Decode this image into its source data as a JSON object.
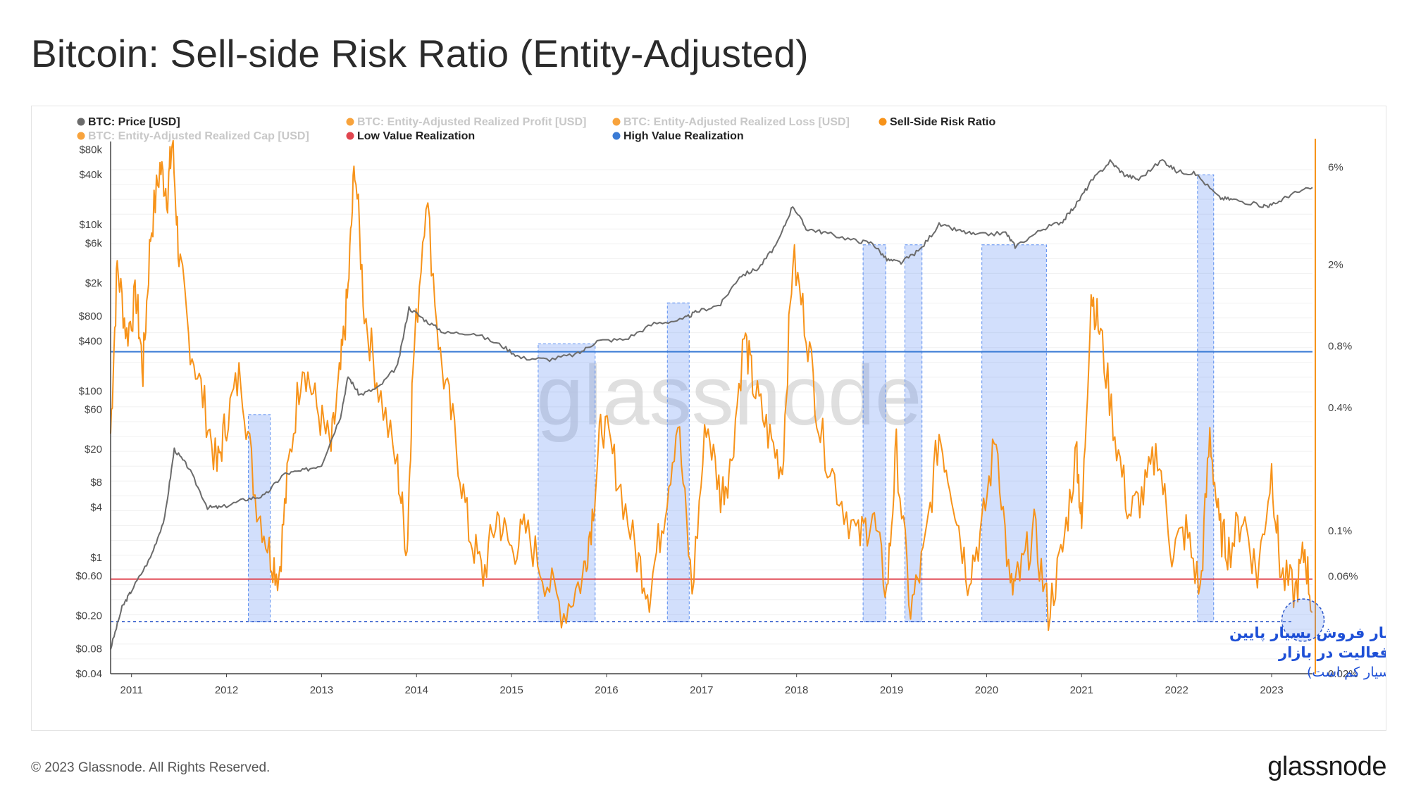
{
  "title": "Bitcoin: Sell-side Risk Ratio (Entity-Adjusted)",
  "footer": {
    "copyright": "© 2023 Glassnode. All Rights Reserved.",
    "brand": "glassnode"
  },
  "watermark": "glassnode",
  "chart_data": {
    "type": "line",
    "title": "Bitcoin: Sell-side Risk Ratio (Entity-Adjusted)",
    "legend": [
      {
        "label": "BTC: Price [USD]",
        "color": "#6b6b6b",
        "active": true
      },
      {
        "label": "BTC: Entity-Adjusted Realized Profit [USD]",
        "color": "#f7931a",
        "active": false
      },
      {
        "label": "BTC: Entity-Adjusted Realized Loss [USD]",
        "color": "#f7931a",
        "active": false
      },
      {
        "label": "Sell-Side Risk Ratio",
        "color": "#f7931a",
        "active": true
      },
      {
        "label": "BTC: Entity-Adjusted Realized Cap [USD]",
        "color": "#f7931a",
        "active": false
      },
      {
        "label": "Low Value Realization",
        "color": "#e0454f",
        "active": true
      },
      {
        "label": "High Value Realization",
        "color": "#3a7bd5",
        "active": true
      }
    ],
    "x_ticks": [
      "2011",
      "2012",
      "2013",
      "2014",
      "2015",
      "2016",
      "2017",
      "2018",
      "2019",
      "2020",
      "2021",
      "2022",
      "2023"
    ],
    "x_range": [
      2010.78,
      2023.43
    ],
    "left_axis": {
      "scale": "log",
      "ylim": [
        0.04,
        100000
      ],
      "ticks": [
        {
          "label": "$80k",
          "value": 80000
        },
        {
          "label": "$40k",
          "value": 40000
        },
        {
          "label": "$10k",
          "value": 10000
        },
        {
          "label": "$6k",
          "value": 6000
        },
        {
          "label": "$2k",
          "value": 2000
        },
        {
          "label": "$800",
          "value": 800
        },
        {
          "label": "$400",
          "value": 400
        },
        {
          "label": "$100",
          "value": 100
        },
        {
          "label": "$60",
          "value": 60
        },
        {
          "label": "$20",
          "value": 20
        },
        {
          "label": "$8",
          "value": 8
        },
        {
          "label": "$4",
          "value": 4
        },
        {
          "label": "$1",
          "value": 1
        },
        {
          "label": "$0.60",
          "value": 0.6
        },
        {
          "label": "$0.20",
          "value": 0.2
        },
        {
          "label": "$0.08",
          "value": 0.08
        },
        {
          "label": "$0.04",
          "value": 0.04
        }
      ]
    },
    "right_axis": {
      "scale": "log",
      "ylim": [
        0.02,
        8
      ],
      "ticks": [
        {
          "label": "6%",
          "value": 6
        },
        {
          "label": "2%",
          "value": 2
        },
        {
          "label": "0.8%",
          "value": 0.8
        },
        {
          "label": "0.4%",
          "value": 0.4
        },
        {
          "label": "0.1%",
          "value": 0.1
        },
        {
          "label": "0.06%",
          "value": 0.06
        },
        {
          "label": "0.02%",
          "value": 0.02
        }
      ]
    },
    "high_value_realization_pct": 0.75,
    "low_value_realization_pct": 0.058,
    "low_dashed_pct": 0.036,
    "btc_price": {
      "x": [
        2010.78,
        2010.9,
        2011.0,
        2011.2,
        2011.35,
        2011.45,
        2011.6,
        2011.8,
        2011.95,
        2012.2,
        2012.4,
        2012.6,
        2012.8,
        2013.0,
        2013.2,
        2013.28,
        2013.4,
        2013.6,
        2013.8,
        2013.92,
        2014.1,
        2014.3,
        2014.6,
        2014.9,
        2015.1,
        2015.4,
        2015.7,
        2015.9,
        2016.2,
        2016.5,
        2016.8,
        2016.95,
        2017.2,
        2017.4,
        2017.6,
        2017.8,
        2017.96,
        2018.1,
        2018.3,
        2018.6,
        2018.8,
        2018.95,
        2019.1,
        2019.3,
        2019.5,
        2019.7,
        2019.9,
        2020.2,
        2020.3,
        2020.6,
        2020.8,
        2020.95,
        2021.1,
        2021.3,
        2021.45,
        2021.6,
        2021.85,
        2022.0,
        2022.2,
        2022.45,
        2022.6,
        2022.9,
        2023.0,
        2023.2,
        2023.43
      ],
      "y": [
        0.08,
        0.25,
        0.4,
        1,
        3,
        20,
        12,
        4,
        4,
        5,
        5.5,
        10,
        11,
        13,
        50,
        150,
        90,
        110,
        200,
        1000,
        700,
        500,
        500,
        350,
        250,
        240,
        280,
        400,
        420,
        650,
        720,
        900,
        1100,
        2400,
        3000,
        6000,
        17000,
        9000,
        8000,
        6500,
        6000,
        3800,
        3500,
        5000,
        10000,
        8500,
        7500,
        8000,
        5500,
        9000,
        11000,
        18000,
        33000,
        58000,
        40000,
        35000,
        60000,
        44000,
        41000,
        21000,
        20000,
        17000,
        17000,
        23000,
        28000
      ]
    },
    "sell_side_risk_ratio": {
      "x": [
        2010.78,
        2010.85,
        2010.95,
        2011.05,
        2011.12,
        2011.2,
        2011.3,
        2011.38,
        2011.43,
        2011.5,
        2011.6,
        2011.75,
        2011.9,
        2012.0,
        2012.15,
        2012.3,
        2012.45,
        2012.55,
        2012.65,
        2012.8,
        2012.95,
        2013.1,
        2013.2,
        2013.28,
        2013.35,
        2013.45,
        2013.6,
        2013.8,
        2013.9,
        2013.96,
        2014.1,
        2014.25,
        2014.4,
        2014.55,
        2014.7,
        2014.85,
        2015.0,
        2015.15,
        2015.35,
        2015.55,
        2015.75,
        2015.85,
        2015.95,
        2016.1,
        2016.3,
        2016.45,
        2016.6,
        2016.75,
        2016.9,
        2017.05,
        2017.2,
        2017.3,
        2017.45,
        2017.55,
        2017.7,
        2017.85,
        2017.96,
        2018.1,
        2018.25,
        2018.45,
        2018.65,
        2018.8,
        2018.95,
        2019.05,
        2019.2,
        2019.35,
        2019.5,
        2019.65,
        2019.8,
        2019.95,
        2020.1,
        2020.25,
        2020.35,
        2020.5,
        2020.65,
        2020.8,
        2020.95,
        2021.0,
        2021.1,
        2021.2,
        2021.35,
        2021.5,
        2021.65,
        2021.8,
        2021.95,
        2022.1,
        2022.25,
        2022.35,
        2022.45,
        2022.55,
        2022.7,
        2022.85,
        2023.0,
        2023.1,
        2023.25,
        2023.35,
        2023.43
      ],
      "y": [
        0.3,
        2.0,
        0.9,
        1.4,
        0.6,
        2.8,
        6.0,
        4.5,
        8.0,
        2.2,
        0.9,
        0.45,
        0.2,
        0.35,
        0.6,
        0.15,
        0.08,
        0.06,
        0.2,
        0.7,
        0.4,
        0.25,
        0.6,
        1.5,
        6.5,
        1.2,
        0.5,
        0.2,
        0.08,
        0.6,
        4.5,
        0.7,
        0.3,
        0.1,
        0.06,
        0.12,
        0.08,
        0.1,
        0.06,
        0.04,
        0.06,
        0.12,
        0.35,
        0.2,
        0.08,
        0.05,
        0.12,
        0.35,
        0.05,
        0.35,
        0.15,
        0.2,
        0.9,
        0.5,
        0.3,
        0.2,
        2.2,
        1.0,
        0.3,
        0.15,
        0.09,
        0.12,
        0.05,
        0.25,
        0.04,
        0.08,
        0.3,
        0.15,
        0.06,
        0.1,
        0.3,
        0.05,
        0.06,
        0.1,
        0.04,
        0.08,
        0.25,
        0.1,
        1.5,
        0.9,
        0.3,
        0.12,
        0.15,
        0.25,
        0.08,
        0.1,
        0.05,
        0.3,
        0.1,
        0.08,
        0.12,
        0.06,
        0.2,
        0.06,
        0.05,
        0.08,
        0.04
      ]
    },
    "highlight_zones": [
      {
        "x0": 2012.23,
        "x1": 2012.46,
        "y_top_pct": 0.37
      },
      {
        "x0": 2015.28,
        "x1": 2015.88,
        "y_top_pct": 0.82
      },
      {
        "x0": 2016.64,
        "x1": 2016.87,
        "y_top_pct": 1.3
      },
      {
        "x0": 2018.7,
        "x1": 2018.94,
        "y_top_pct": 2.5
      },
      {
        "x0": 2019.14,
        "x1": 2019.32,
        "y_top_pct": 2.5
      },
      {
        "x0": 2019.95,
        "x1": 2020.63,
        "y_top_pct": 2.5
      },
      {
        "x0": 2022.22,
        "x1": 2022.39,
        "y_top_pct": 5.5
      }
    ],
    "annotation": {
      "line1": "خطر فشار فروش بسیار پایین",
      "line2": "و عدم تمایل سرمایه‌گذاران به فعالیت در بازار",
      "line3": "(حجم نقد شده نسبت به ارزش حقیقی بازار بسیار کم است)"
    }
  }
}
